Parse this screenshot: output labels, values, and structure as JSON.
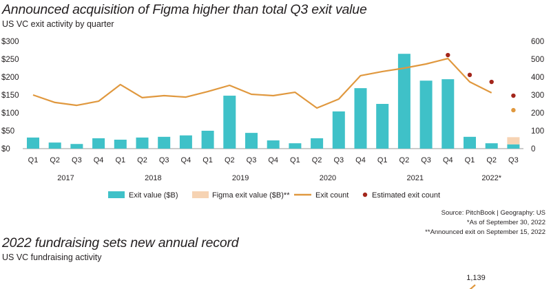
{
  "chart_data": [
    {
      "type": "bar",
      "title": "Announced acquisition of Figma higher than total Q3 exit value",
      "subtitle": "US VC exit activity by quarter",
      "categories": [
        "Q1",
        "Q2",
        "Q3",
        "Q4",
        "Q1",
        "Q2",
        "Q3",
        "Q4",
        "Q1",
        "Q2",
        "Q3",
        "Q4",
        "Q1",
        "Q2",
        "Q3",
        "Q4",
        "Q1",
        "Q2",
        "Q3",
        "Q4",
        "Q1",
        "Q2",
        "Q3"
      ],
      "year_groups": [
        {
          "label": "2017",
          "start": 0,
          "end": 3
        },
        {
          "label": "2018",
          "start": 4,
          "end": 7
        },
        {
          "label": "2019",
          "start": 8,
          "end": 11
        },
        {
          "label": "2020",
          "start": 12,
          "end": 15
        },
        {
          "label": "2021",
          "start": 16,
          "end": 19
        },
        {
          "label": "2022*",
          "start": 20,
          "end": 22
        }
      ],
      "y_left": {
        "range": [
          0,
          300
        ],
        "ticks": [
          "$0",
          "$50",
          "$100",
          "$150",
          "$200",
          "$250",
          "$300"
        ]
      },
      "y_right": {
        "range": [
          0,
          600
        ],
        "ticks": [
          "0",
          "100",
          "200",
          "300",
          "400",
          "500",
          "600"
        ]
      },
      "series": [
        {
          "name": "Exit value ($B)",
          "kind": "bar",
          "axis": "left",
          "color": "#3fc1c8",
          "values": [
            31,
            17,
            13,
            29,
            25,
            31,
            33,
            37,
            50,
            148,
            44,
            23,
            15,
            29,
            104,
            169,
            125,
            265,
            190,
            194,
            33,
            15,
            12
          ]
        },
        {
          "name": "Figma exit value ($B)**",
          "kind": "stacked-bar",
          "axis": "left",
          "color": "#f6d3b3",
          "values": [
            null,
            null,
            null,
            null,
            null,
            null,
            null,
            null,
            null,
            null,
            null,
            null,
            null,
            null,
            null,
            null,
            null,
            null,
            null,
            null,
            null,
            null,
            20
          ]
        },
        {
          "name": "Exit count",
          "kind": "line",
          "axis": "right",
          "color": "#e0983e",
          "last_point_marker_only": true,
          "values": [
            300,
            258,
            242,
            265,
            358,
            285,
            296,
            288,
            319,
            354,
            304,
            296,
            315,
            227,
            277,
            408,
            431,
            450,
            473,
            504,
            373,
            312,
            215
          ]
        },
        {
          "name": "Estimated exit count",
          "kind": "scatter",
          "axis": "right",
          "color": "#a3261b",
          "values": [
            null,
            null,
            null,
            null,
            null,
            null,
            null,
            null,
            null,
            null,
            null,
            null,
            null,
            null,
            null,
            null,
            null,
            null,
            null,
            523,
            412,
            373,
            296
          ]
        }
      ],
      "legend": "bottom",
      "grid": false,
      "notes": [
        "Source: PitchBook | Geography: US",
        "*As of September 30, 2022",
        "**Announced exit on September 15, 2022"
      ]
    },
    {
      "type": "line",
      "title": "2022 fundraising sets new annual record",
      "subtitle": "US VC fundraising activity",
      "color": "#e0983e",
      "values": [
        1139
      ],
      "data_labels": [
        "1,139"
      ]
    }
  ]
}
